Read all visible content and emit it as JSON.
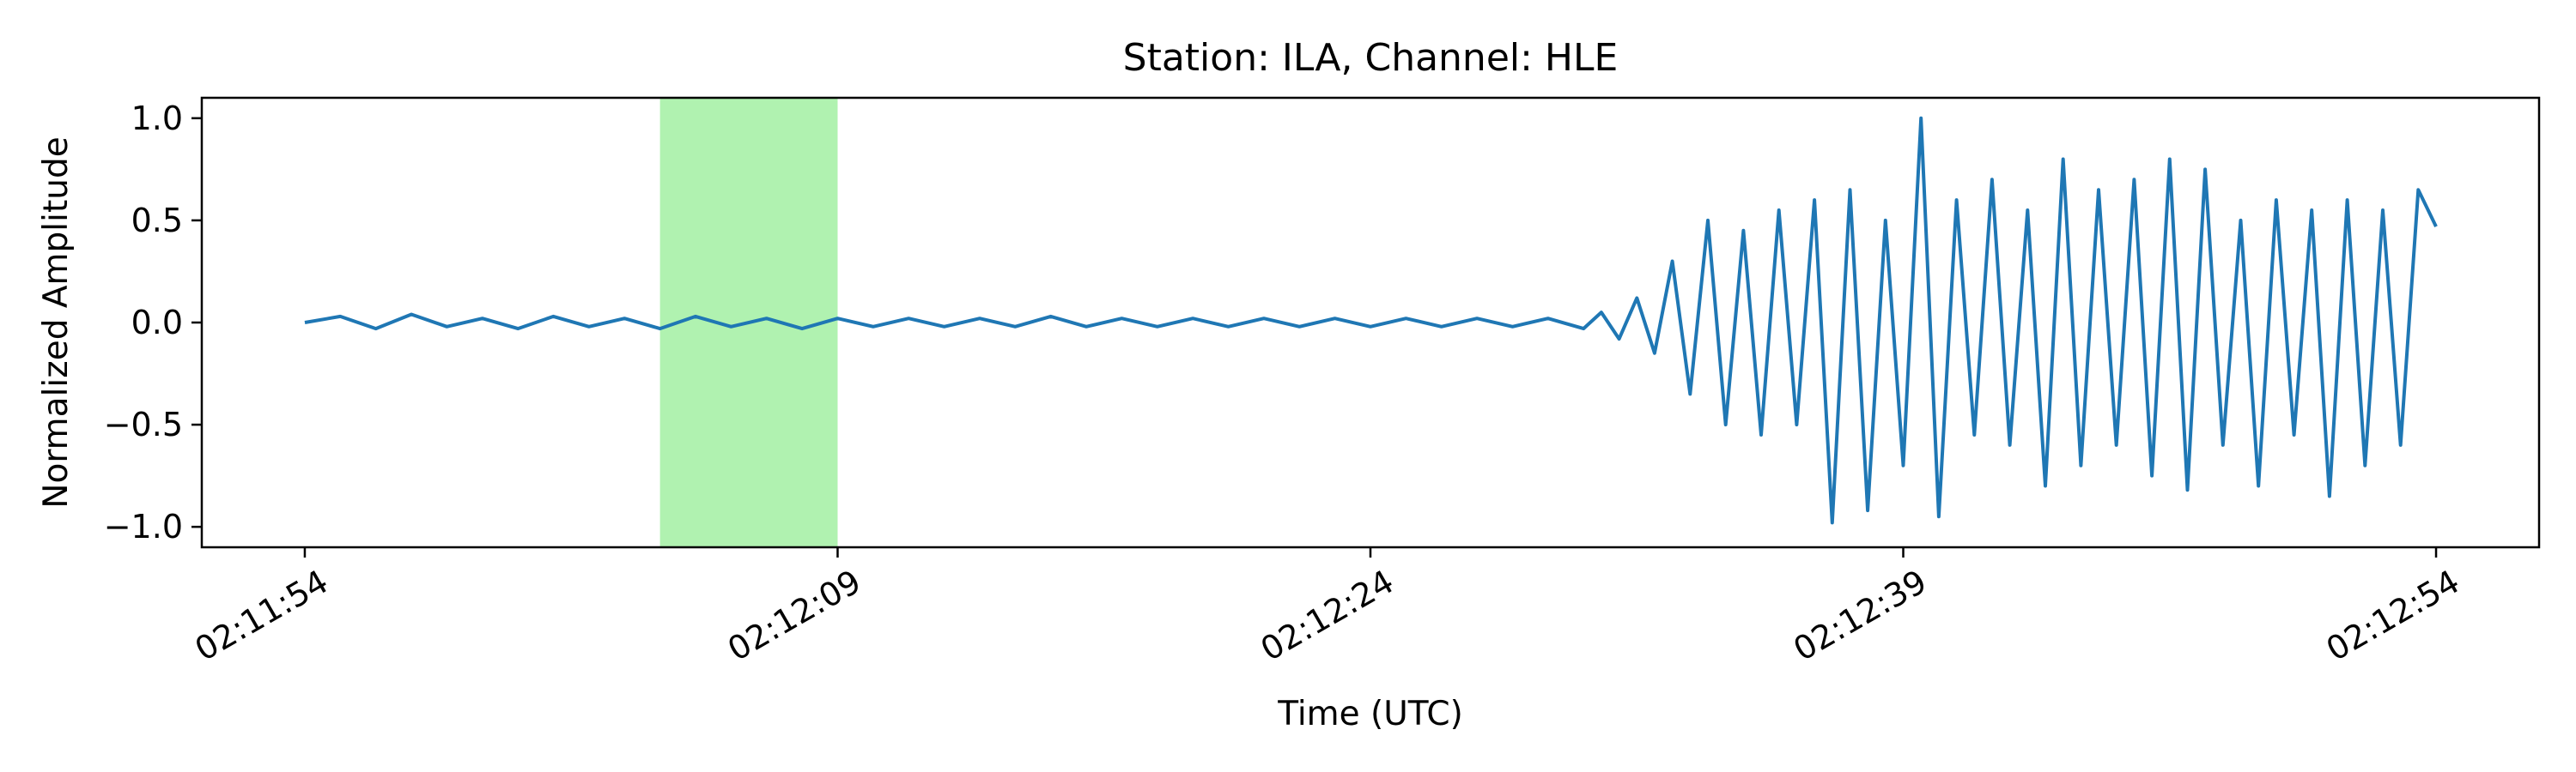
{
  "chart_data": {
    "type": "line",
    "title": "Station: ILA, Channel: HLE",
    "xlabel": "Time (UTC)",
    "ylabel": "Normalized Amplitude",
    "x_ticks": [
      {
        "t": 0,
        "label": "02:11:54"
      },
      {
        "t": 15,
        "label": "02:12:09"
      },
      {
        "t": 30,
        "label": "02:12:24"
      },
      {
        "t": 45,
        "label": "02:12:39"
      },
      {
        "t": 60,
        "label": "02:12:54"
      }
    ],
    "y_ticks": [
      {
        "v": 1.0,
        "label": "1.0"
      },
      {
        "v": 0.5,
        "label": "0.5"
      },
      {
        "v": 0.0,
        "label": "0.0"
      },
      {
        "v": -0.5,
        "label": "−0.5"
      },
      {
        "v": -1.0,
        "label": "−1.0"
      }
    ],
    "xlim": [
      -2.9,
      62.9
    ],
    "ylim": [
      -1.1,
      1.1
    ],
    "grid": false,
    "highlight_window": {
      "start": 10.0,
      "end": 15.0,
      "color": "#b0f2b0"
    },
    "series": [
      {
        "color": "#1f77b4",
        "x": [
          0,
          1,
          2,
          3,
          4,
          5,
          6,
          7,
          8,
          9,
          10,
          11,
          12,
          13,
          14,
          15,
          16,
          17,
          18,
          19,
          20,
          21,
          22,
          23,
          24,
          25,
          26,
          27,
          28,
          29,
          30,
          31,
          32,
          33,
          34,
          35,
          36,
          36.5,
          37,
          37.5,
          38,
          38.5,
          39,
          39.5,
          40,
          40.5,
          41,
          41.5,
          42,
          42.5,
          43,
          43.5,
          44,
          44.5,
          45,
          45.5,
          46,
          46.5,
          47,
          47.5,
          48,
          48.5,
          49,
          49.5,
          50,
          50.5,
          51,
          51.5,
          52,
          52.5,
          53,
          53.5,
          54,
          54.5,
          55,
          55.5,
          56,
          56.5,
          57,
          57.5,
          58,
          58.5,
          59,
          59.5,
          60
        ],
        "y": [
          0.0,
          0.03,
          -0.03,
          0.04,
          -0.02,
          0.02,
          -0.03,
          0.03,
          -0.02,
          0.02,
          -0.03,
          0.03,
          -0.02,
          0.02,
          -0.03,
          0.02,
          -0.02,
          0.02,
          -0.02,
          0.02,
          -0.02,
          0.03,
          -0.02,
          0.02,
          -0.02,
          0.02,
          -0.02,
          0.02,
          -0.02,
          0.02,
          -0.02,
          0.02,
          -0.02,
          0.02,
          -0.02,
          0.02,
          -0.03,
          0.05,
          -0.08,
          0.12,
          -0.15,
          0.3,
          -0.35,
          0.5,
          -0.5,
          0.45,
          -0.55,
          0.55,
          -0.5,
          0.6,
          -0.98,
          0.65,
          -0.92,
          0.5,
          -0.7,
          1.0,
          -0.95,
          0.6,
          -0.55,
          0.7,
          -0.6,
          0.55,
          -0.8,
          0.8,
          -0.7,
          0.65,
          -0.6,
          0.7,
          -0.75,
          0.8,
          -0.82,
          0.75,
          -0.6,
          0.5,
          -0.8,
          0.6,
          -0.55,
          0.55,
          -0.85,
          0.6,
          -0.7,
          0.55,
          -0.6,
          0.65,
          0.47
        ]
      }
    ]
  }
}
